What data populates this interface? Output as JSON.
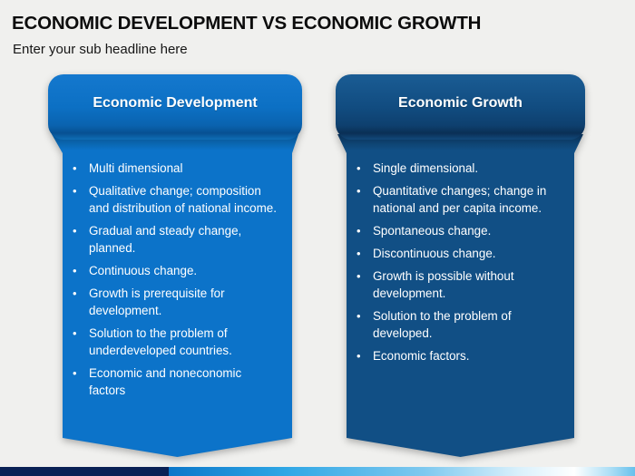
{
  "slide": {
    "title": "ECONOMIC DEVELOPMENT VS ECONOMIC GROWTH",
    "subtitle": "Enter your sub headline here",
    "bullet_char": "•"
  },
  "banners": [
    {
      "title": "Economic Development",
      "items": [
        "Multi dimensional",
        "Qualitative change; composition and distribution of national income.",
        "Gradual and steady change, planned.",
        "Continuous change.",
        "Growth is prerequisite for development.",
        "Solution to the problem of underdeveloped countries.",
        "Economic and noneconomic factors"
      ]
    },
    {
      "title": "Economic Growth",
      "items": [
        "Single dimensional.",
        "Quantitative changes; change in national and per capita income.",
        "Spontaneous change.",
        "Discontinuous change.",
        "Growth is possible without development.",
        "Solution to the problem of developed.",
        "Economic factors."
      ]
    }
  ],
  "colors": {
    "background": "#F0F0EE",
    "banner_left_header": "#0C70C4",
    "banner_left_body": "#0C73C9",
    "banner_right_header": "#114C80",
    "banner_right_body": "#114F85",
    "header_text": "#FFFFFF",
    "body_text": "#FFFFFF",
    "title_text": "#0C0C0C",
    "footer_navy": "#0A2155",
    "footer_blue": "#2FA7E5"
  }
}
